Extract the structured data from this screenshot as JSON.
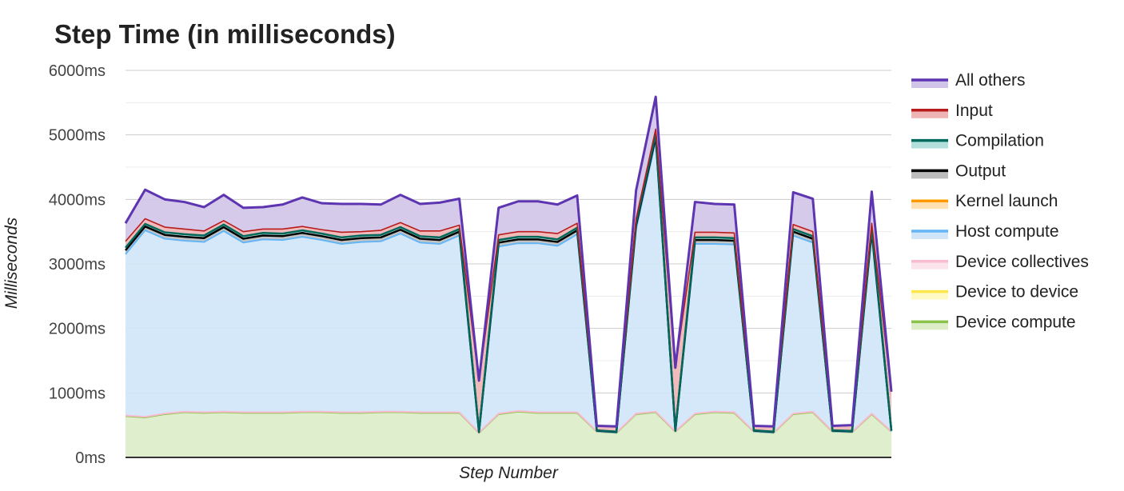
{
  "chart_data": {
    "type": "area",
    "stacked": true,
    "title": "Step Time (in milliseconds)",
    "xlabel": "Step Number",
    "ylabel": "Milliseconds",
    "ylim": [
      0,
      6000
    ],
    "yticks": [
      "0ms",
      "1000ms",
      "2000ms",
      "3000ms",
      "4000ms",
      "5000ms",
      "6000ms"
    ],
    "grid": true,
    "legend_position": "right",
    "series": [
      {
        "name": "Device compute",
        "color": "#8bc34a",
        "fill": "#dcedc8",
        "values": [
          640,
          620,
          670,
          700,
          690,
          700,
          690,
          690,
          690,
          700,
          700,
          690,
          690,
          700,
          700,
          690,
          690,
          690,
          380,
          670,
          710,
          690,
          690,
          690,
          400,
          380,
          670,
          700,
          400,
          670,
          700,
          690,
          400,
          380,
          670,
          700,
          400,
          390,
          670,
          400
        ]
      },
      {
        "name": "Device to device",
        "color": "#fde74c",
        "fill": "#fff9c4",
        "values": [
          0,
          0,
          0,
          0,
          0,
          0,
          0,
          0,
          0,
          0,
          0,
          0,
          0,
          0,
          0,
          0,
          0,
          0,
          0,
          0,
          0,
          0,
          0,
          0,
          0,
          0,
          0,
          0,
          0,
          0,
          0,
          0,
          0,
          0,
          0,
          0,
          0,
          0,
          0,
          0
        ]
      },
      {
        "name": "Device collectives",
        "color": "#f8bbd0",
        "fill": "#fce4ec",
        "values": [
          10,
          10,
          10,
          10,
          10,
          10,
          10,
          10,
          10,
          10,
          10,
          10,
          10,
          10,
          10,
          10,
          10,
          10,
          5,
          10,
          10,
          10,
          10,
          10,
          5,
          5,
          10,
          10,
          5,
          10,
          10,
          10,
          5,
          5,
          10,
          10,
          5,
          5,
          10,
          5
        ]
      },
      {
        "name": "Host compute",
        "color": "#64b5f6",
        "fill": "#d0e6f8",
        "values": [
          2500,
          2890,
          2710,
          2650,
          2640,
          2800,
          2630,
          2680,
          2670,
          2710,
          2660,
          2610,
          2640,
          2640,
          2760,
          2630,
          2610,
          2740,
          0,
          2590,
          2600,
          2620,
          2580,
          2760,
          0,
          0,
          2860,
          4200,
          0,
          2630,
          2600,
          2600,
          0,
          0,
          2760,
          2620,
          0,
          0,
          2770,
          0
        ]
      },
      {
        "name": "Kernel launch",
        "color": "#ff9800",
        "fill": "#ffe0b2",
        "values": [
          0,
          0,
          0,
          0,
          0,
          0,
          0,
          0,
          0,
          0,
          0,
          0,
          0,
          0,
          0,
          0,
          0,
          0,
          0,
          0,
          0,
          0,
          0,
          0,
          0,
          0,
          0,
          0,
          0,
          0,
          0,
          0,
          0,
          0,
          0,
          0,
          0,
          0,
          0,
          0
        ]
      },
      {
        "name": "Output",
        "color": "#000000",
        "fill": "#bdbdbd",
        "values": [
          60,
          60,
          60,
          60,
          60,
          60,
          60,
          60,
          60,
          60,
          60,
          60,
          60,
          60,
          60,
          60,
          60,
          60,
          10,
          60,
          60,
          60,
          60,
          60,
          10,
          10,
          60,
          60,
          10,
          60,
          60,
          60,
          10,
          10,
          60,
          60,
          10,
          10,
          60,
          10
        ]
      },
      {
        "name": "Compilation",
        "color": "#00695c",
        "fill": "#b2dfdb",
        "values": [
          40,
          40,
          40,
          40,
          40,
          40,
          40,
          40,
          40,
          40,
          40,
          40,
          40,
          40,
          40,
          40,
          40,
          40,
          5,
          40,
          40,
          40,
          40,
          40,
          5,
          5,
          40,
          40,
          5,
          40,
          40,
          40,
          5,
          5,
          40,
          40,
          5,
          5,
          40,
          5
        ]
      },
      {
        "name": "Input",
        "color": "#b71c1c",
        "fill": "#efb4b4",
        "values": [
          100,
          80,
          80,
          80,
          70,
          60,
          70,
          60,
          70,
          60,
          60,
          80,
          60,
          70,
          70,
          80,
          100,
          60,
          790,
          80,
          80,
          80,
          90,
          70,
          70,
          80,
          60,
          80,
          970,
          80,
          80,
          80,
          70,
          80,
          70,
          70,
          70,
          90,
          80,
          600
        ]
      },
      {
        "name": "All others",
        "color": "#5e35b1",
        "fill": "#d1c4e9",
        "values": [
          280,
          450,
          430,
          420,
          370,
          400,
          370,
          340,
          380,
          450,
          410,
          440,
          430,
          400,
          430,
          420,
          440,
          410,
          0,
          420,
          470,
          470,
          450,
          430,
          0,
          0,
          440,
          500,
          0,
          470,
          440,
          440,
          0,
          0,
          500,
          510,
          0,
          0,
          490,
          0
        ]
      }
    ]
  }
}
